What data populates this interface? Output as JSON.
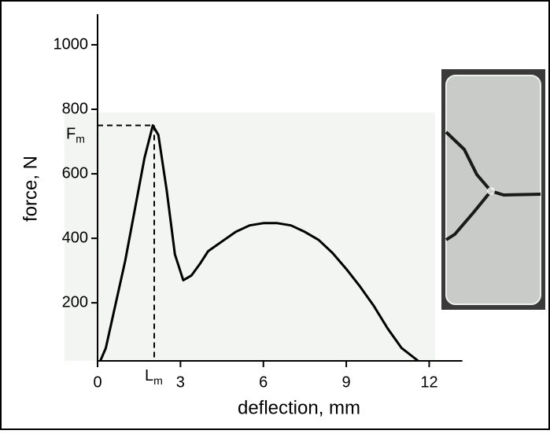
{
  "chart_data": {
    "type": "line",
    "x_label": "deflection, mm",
    "y_label": "force, N",
    "x": [
      0.1,
      0.3,
      1.0,
      1.7,
      2.0,
      2.2,
      2.5,
      2.8,
      3.1,
      3.4,
      3.7,
      4.0,
      4.5,
      5.0,
      5.5,
      6.0,
      6.5,
      7.0,
      7.5,
      8.0,
      8.5,
      9.0,
      9.5,
      10.0,
      10.5,
      11.0,
      11.6
    ],
    "series": [
      {
        "color": "#000000",
        "values": [
          20,
          60,
          330,
          650,
          750,
          720,
          550,
          350,
          270,
          285,
          320,
          360,
          390,
          420,
          440,
          447,
          447,
          440,
          420,
          395,
          355,
          305,
          250,
          190,
          120,
          60,
          20
        ]
      }
    ],
    "xlim": [
      0,
      13.2
    ],
    "ylim": [
      20,
      1095
    ],
    "xticks": [
      0,
      3,
      6,
      9,
      12
    ],
    "yticks": [
      200,
      400,
      600,
      800,
      1000
    ],
    "annotations": [
      {
        "text": "F",
        "sub": "m",
        "axis": "y",
        "value": 750
      },
      {
        "text": "L",
        "sub": "m",
        "axis": "x",
        "value": 2.05
      }
    ]
  }
}
